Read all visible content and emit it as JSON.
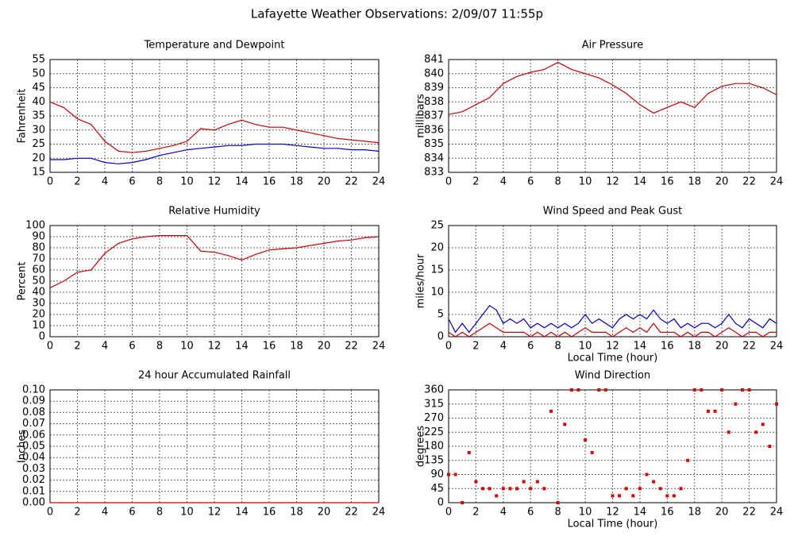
{
  "title": "Lafayette Weather Observations: 2/09/07 11:55p",
  "chart_data": [
    {
      "type": "line",
      "title": "Temperature and Dewpoint",
      "ylabel": "Fahrenheit",
      "x": [
        0,
        1,
        2,
        3,
        4,
        5,
        6,
        7,
        8,
        9,
        10,
        11,
        12,
        13,
        14,
        15,
        16,
        17,
        18,
        19,
        20,
        21,
        22,
        23,
        24
      ],
      "series": [
        {
          "color": "#cc0000",
          "values": [
            40,
            38,
            34,
            32,
            26,
            22.5,
            22,
            22.5,
            23.5,
            24.5,
            26,
            30.5,
            30,
            32,
            33.5,
            32,
            31,
            31,
            30,
            29,
            28,
            27,
            26.5,
            26,
            25.5
          ]
        },
        {
          "color": "#0000cc",
          "values": [
            19.5,
            19.5,
            20,
            20,
            18.5,
            18,
            18.5,
            19.5,
            21,
            22,
            23,
            23.5,
            24,
            24.5,
            24.5,
            25,
            25,
            25,
            24.5,
            24,
            23.5,
            23.5,
            23,
            23,
            22.5
          ]
        }
      ],
      "xlim": [
        0,
        24
      ],
      "xticks": [
        0,
        2,
        4,
        6,
        8,
        10,
        12,
        14,
        16,
        18,
        20,
        22,
        24
      ],
      "ylim": [
        15,
        55
      ],
      "yticks": [
        15,
        20,
        25,
        30,
        35,
        40,
        45,
        50,
        55
      ],
      "grid": true
    },
    {
      "type": "line",
      "title": "Air Pressure",
      "ylabel": "millibars",
      "x": [
        0,
        1,
        2,
        3,
        4,
        5,
        6,
        7,
        8,
        9,
        10,
        11,
        12,
        13,
        14,
        15,
        16,
        17,
        18,
        19,
        20,
        21,
        22,
        23,
        24
      ],
      "series": [
        {
          "color": "#cc0000",
          "values": [
            837.1,
            837.3,
            837.8,
            838.3,
            839.3,
            839.8,
            840.1,
            840.3,
            840.8,
            840.3,
            840.0,
            839.7,
            839.2,
            838.6,
            837.8,
            837.2,
            837.6,
            838.0,
            837.6,
            838.6,
            839.1,
            839.3,
            839.3,
            839.0,
            838.5
          ]
        }
      ],
      "xlim": [
        0,
        24
      ],
      "xticks": [
        0,
        2,
        4,
        6,
        8,
        10,
        12,
        14,
        16,
        18,
        20,
        22,
        24
      ],
      "ylim": [
        833,
        841
      ],
      "yticks": [
        833,
        834,
        835,
        836,
        837,
        838,
        839,
        840,
        841
      ],
      "grid": true
    },
    {
      "type": "line",
      "title": "Relative Humidity",
      "ylabel": "Percent",
      "x": [
        0,
        1,
        2,
        3,
        4,
        5,
        6,
        7,
        8,
        9,
        10,
        11,
        12,
        13,
        14,
        15,
        16,
        17,
        18,
        19,
        20,
        21,
        22,
        23,
        24
      ],
      "series": [
        {
          "color": "#cc0000",
          "values": [
            44,
            50,
            58,
            60,
            75,
            84,
            88,
            90,
            91,
            91,
            91,
            77,
            76,
            73,
            69,
            74,
            78,
            79,
            80,
            82,
            84,
            86,
            87,
            89,
            90
          ]
        }
      ],
      "xlim": [
        0,
        24
      ],
      "xticks": [
        0,
        2,
        4,
        6,
        8,
        10,
        12,
        14,
        16,
        18,
        20,
        22,
        24
      ],
      "ylim": [
        0,
        100
      ],
      "yticks": [
        0,
        10,
        20,
        30,
        40,
        50,
        60,
        70,
        80,
        90,
        100
      ],
      "grid": true
    },
    {
      "type": "line",
      "title": "Wind Speed and Peak Gust",
      "ylabel": "miles/hour",
      "xlabel": "Local Time (hour)",
      "x": [
        0,
        0.5,
        1,
        1.5,
        2,
        2.5,
        3,
        3.5,
        4,
        4.5,
        5,
        5.5,
        6,
        6.5,
        7,
        7.5,
        8,
        8.5,
        9,
        9.5,
        10,
        10.5,
        11,
        11.5,
        12,
        12.5,
        13,
        13.5,
        14,
        14.5,
        15,
        15.5,
        16,
        16.5,
        17,
        17.5,
        18,
        18.5,
        19,
        19.5,
        20,
        20.5,
        21,
        21.5,
        22,
        22.5,
        23,
        23.5,
        24
      ],
      "series": [
        {
          "color": "#0000cc",
          "values": [
            4,
            1,
            3,
            1,
            3,
            5,
            7,
            6,
            3,
            4,
            3,
            4,
            2,
            3,
            2,
            3,
            2,
            3,
            2,
            3,
            5,
            3,
            4,
            3,
            2,
            4,
            5,
            4,
            5,
            4,
            6,
            4,
            3,
            4,
            2,
            3,
            2,
            3,
            3,
            2,
            3,
            5,
            3,
            2,
            4,
            3,
            2,
            4,
            3
          ]
        },
        {
          "color": "#cc0000",
          "values": [
            1,
            0,
            1,
            0,
            1,
            2,
            3,
            2,
            1,
            1,
            1,
            1,
            0,
            1,
            0,
            1,
            0,
            1,
            0,
            1,
            2,
            1,
            1,
            1,
            0,
            1,
            2,
            1,
            2,
            1,
            3,
            1,
            1,
            1,
            0,
            1,
            0,
            1,
            1,
            0,
            1,
            2,
            1,
            0,
            1,
            1,
            0,
            1,
            1
          ]
        }
      ],
      "xlim": [
        0,
        24
      ],
      "xticks": [
        0,
        2,
        4,
        6,
        8,
        10,
        12,
        14,
        16,
        18,
        20,
        22,
        24
      ],
      "ylim": [
        0,
        25
      ],
      "yticks": [
        0,
        5,
        10,
        15,
        20,
        25
      ],
      "grid": true
    },
    {
      "type": "line",
      "title": "24 hour Accumulated Rainfall",
      "ylabel": "Inches",
      "x": [
        0,
        24
      ],
      "series": [
        {
          "color": "#cc0000",
          "values": [
            0,
            0
          ]
        }
      ],
      "xlim": [
        0,
        24
      ],
      "xticks": [
        0,
        2,
        4,
        6,
        8,
        10,
        12,
        14,
        16,
        18,
        20,
        22,
        24
      ],
      "ylim": [
        0,
        0.1
      ],
      "yticks": [
        {
          "value": 0,
          "label": "0.00"
        },
        {
          "value": 0.01,
          "label": "0.01"
        },
        {
          "value": 0.02,
          "label": "0.02"
        },
        {
          "value": 0.03,
          "label": "0.03"
        },
        {
          "value": 0.04,
          "label": "0.04"
        },
        {
          "value": 0.05,
          "label": "0.05"
        },
        {
          "value": 0.06,
          "label": "0.06"
        },
        {
          "value": 0.07,
          "label": "0.07"
        },
        {
          "value": 0.08,
          "label": "0.08"
        },
        {
          "value": 0.09,
          "label": "0.09"
        },
        {
          "value": 0.1,
          "label": "0.10"
        }
      ],
      "grid": true
    },
    {
      "type": "scatter",
      "title": "Wind Direction",
      "ylabel": "degrees",
      "xlabel": "Local Time (hour)",
      "x": [
        0,
        0.5,
        1,
        1.5,
        2,
        2.5,
        3,
        3.5,
        4,
        4.5,
        5,
        5.5,
        6,
        6.5,
        7,
        7.5,
        8,
        8.5,
        9,
        9.5,
        10,
        10.5,
        11,
        11.5,
        12,
        12.5,
        13,
        13.5,
        14,
        14.5,
        15,
        15.5,
        16,
        16.5,
        17,
        17.5,
        18,
        18.5,
        19,
        19.5,
        20,
        20.5,
        21,
        21.5,
        22,
        22.5,
        23,
        23.5,
        24
      ],
      "series": [
        {
          "color": "#dd0000",
          "values": [
            90,
            90,
            0,
            160,
            67,
            45,
            45,
            22,
            45,
            45,
            45,
            67,
            45,
            67,
            45,
            292,
            0,
            250,
            360,
            360,
            200,
            160,
            360,
            360,
            22,
            22,
            45,
            22,
            45,
            90,
            67,
            45,
            22,
            22,
            45,
            135,
            360,
            360,
            292,
            292,
            360,
            225,
            315,
            360,
            360,
            225,
            250,
            180,
            315
          ]
        }
      ],
      "xlim": [
        0,
        24
      ],
      "xticks": [
        0,
        2,
        4,
        6,
        8,
        10,
        12,
        14,
        16,
        18,
        20,
        22,
        24
      ],
      "ylim": [
        0,
        360
      ],
      "yticks": [
        0,
        45,
        90,
        135,
        180,
        225,
        270,
        315,
        360
      ],
      "grid": true
    }
  ]
}
